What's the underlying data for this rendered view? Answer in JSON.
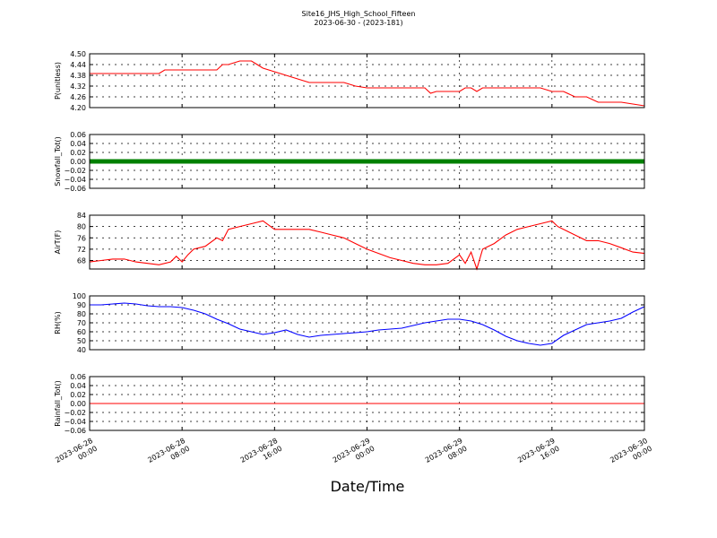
{
  "title_line1": "Site16_JHS_High_School_Fifteen",
  "title_line2": "2023-06-30 - (2023-181)",
  "xlabel": "Date/Time",
  "colors": {
    "pressure": "#ff0000",
    "snowfall": "#008000",
    "airtemp": "#ff0000",
    "rh": "#0000ff",
    "rainfall": "#ff0000"
  },
  "x_ticks": [
    {
      "hours": 0,
      "line1": "2023-06-28",
      "line2": "00:00"
    },
    {
      "hours": 8,
      "line1": "2023-06-28",
      "line2": "08:00"
    },
    {
      "hours": 16,
      "line1": "2023-06-28",
      "line2": "16:00"
    },
    {
      "hours": 24,
      "line1": "2023-06-29",
      "line2": "00:00"
    },
    {
      "hours": 32,
      "line1": "2023-06-29",
      "line2": "08:00"
    },
    {
      "hours": 40,
      "line1": "2023-06-29",
      "line2": "16:00"
    },
    {
      "hours": 48,
      "line1": "2023-06-30",
      "line2": "00:00"
    }
  ],
  "chart_data": [
    {
      "type": "line",
      "ylabel": "P(unitless)",
      "ylim": [
        4.2,
        4.5
      ],
      "yticks": [
        "4.20",
        "4.26",
        "4.32",
        "4.38",
        "4.44",
        "4.50"
      ],
      "grid": true,
      "series": [
        {
          "x_hours": [
            0,
            1,
            2,
            3,
            4,
            5,
            6,
            6.5,
            7,
            8,
            9,
            10,
            11,
            11.5,
            12,
            13,
            13.5,
            14,
            14.5,
            15,
            16,
            17,
            18,
            19,
            20,
            21,
            22,
            23,
            24,
            25,
            26,
            27,
            28,
            29,
            29.5,
            30,
            31,
            32,
            32.5,
            33,
            33.5,
            34,
            35,
            36,
            37,
            38,
            39,
            40,
            41,
            42,
            43,
            44,
            45,
            46,
            47,
            48
          ],
          "values": [
            4.39,
            4.39,
            4.39,
            4.39,
            4.39,
            4.39,
            4.39,
            4.41,
            4.41,
            4.41,
            4.41,
            4.41,
            4.41,
            4.44,
            4.44,
            4.46,
            4.46,
            4.46,
            4.44,
            4.42,
            4.4,
            4.38,
            4.36,
            4.34,
            4.34,
            4.34,
            4.34,
            4.32,
            4.31,
            4.31,
            4.31,
            4.31,
            4.31,
            4.31,
            4.28,
            4.29,
            4.29,
            4.29,
            4.31,
            4.31,
            4.29,
            4.31,
            4.31,
            4.31,
            4.31,
            4.31,
            4.31,
            4.29,
            4.29,
            4.26,
            4.26,
            4.23,
            4.23,
            4.23,
            4.22,
            4.21
          ]
        }
      ]
    },
    {
      "type": "line",
      "ylabel": "Snowfall_Tot()",
      "ylim": [
        -0.06,
        0.06
      ],
      "yticks": [
        "−0.06",
        "−0.04",
        "−0.02",
        "0.00",
        "0.02",
        "0.04",
        "0.06"
      ],
      "grid": true,
      "series": [
        {
          "x_hours": [
            0,
            8,
            16,
            24,
            32,
            40,
            48
          ],
          "values": [
            0,
            0,
            0,
            0,
            0,
            0,
            0
          ]
        }
      ]
    },
    {
      "type": "line",
      "ylabel": "AirT(F)",
      "ylim": [
        65,
        84
      ],
      "yticks": [
        "68",
        "72",
        "76",
        "80",
        "84"
      ],
      "grid": true,
      "series": [
        {
          "x_hours": [
            0,
            1,
            2,
            3,
            4,
            5,
            6,
            7,
            7.5,
            8,
            8.5,
            9,
            10,
            11,
            11.5,
            12,
            13,
            14,
            15,
            16,
            17,
            18,
            19,
            20,
            21,
            22,
            23,
            24,
            25,
            26,
            27,
            28,
            29,
            30,
            31,
            32,
            32.5,
            33,
            33.5,
            34,
            34.5,
            35,
            36,
            37,
            38,
            39,
            40,
            40.5,
            41,
            42,
            43,
            44,
            45,
            46,
            47,
            48
          ],
          "values": [
            67.5,
            68,
            68.5,
            68.5,
            67.5,
            67,
            66.5,
            67.5,
            69.5,
            67.5,
            70,
            72,
            73,
            76,
            75,
            79,
            80,
            81,
            82,
            79,
            79,
            79,
            79,
            78,
            77,
            76,
            74,
            72,
            70.5,
            69,
            68,
            67,
            66.5,
            66.5,
            67,
            70,
            67,
            71,
            65,
            72,
            73,
            74,
            77,
            79,
            80,
            81,
            82,
            80,
            79,
            77,
            75,
            75,
            74,
            72.5,
            71,
            70.5
          ]
        }
      ]
    },
    {
      "type": "line",
      "ylabel": "RH(%)",
      "ylim": [
        40,
        100
      ],
      "yticks": [
        "40",
        "50",
        "60",
        "70",
        "80",
        "90",
        "100"
      ],
      "grid": true,
      "series": [
        {
          "x_hours": [
            0,
            1,
            2,
            3,
            4,
            5,
            6,
            7,
            8,
            9,
            10,
            11,
            12,
            13,
            14,
            15,
            16,
            17,
            18,
            19,
            20,
            21,
            22,
            23,
            24,
            25,
            26,
            27,
            28,
            29,
            30,
            31,
            32,
            33,
            34,
            35,
            36,
            37,
            38,
            39,
            40,
            41,
            42,
            43,
            44,
            45,
            46,
            47,
            48
          ],
          "values": [
            90,
            90,
            91,
            92,
            91,
            89,
            88,
            88,
            87,
            84,
            80,
            74,
            69,
            63,
            60,
            57,
            59,
            62,
            57,
            54,
            56,
            57,
            58,
            59,
            60,
            62,
            63,
            64,
            67,
            70,
            72,
            74,
            74,
            72,
            68,
            62,
            55,
            50,
            47,
            45,
            47,
            56,
            62,
            68,
            70,
            72,
            75,
            82,
            88
          ]
        }
      ]
    },
    {
      "type": "line",
      "ylabel": "Rainfall_Tot()",
      "ylim": [
        -0.06,
        0.06
      ],
      "yticks": [
        "−0.06",
        "−0.04",
        "−0.02",
        "0.00",
        "0.02",
        "0.04",
        "0.06"
      ],
      "grid": true,
      "series": [
        {
          "x_hours": [
            0,
            48
          ],
          "values": [
            0,
            0
          ]
        }
      ]
    }
  ]
}
